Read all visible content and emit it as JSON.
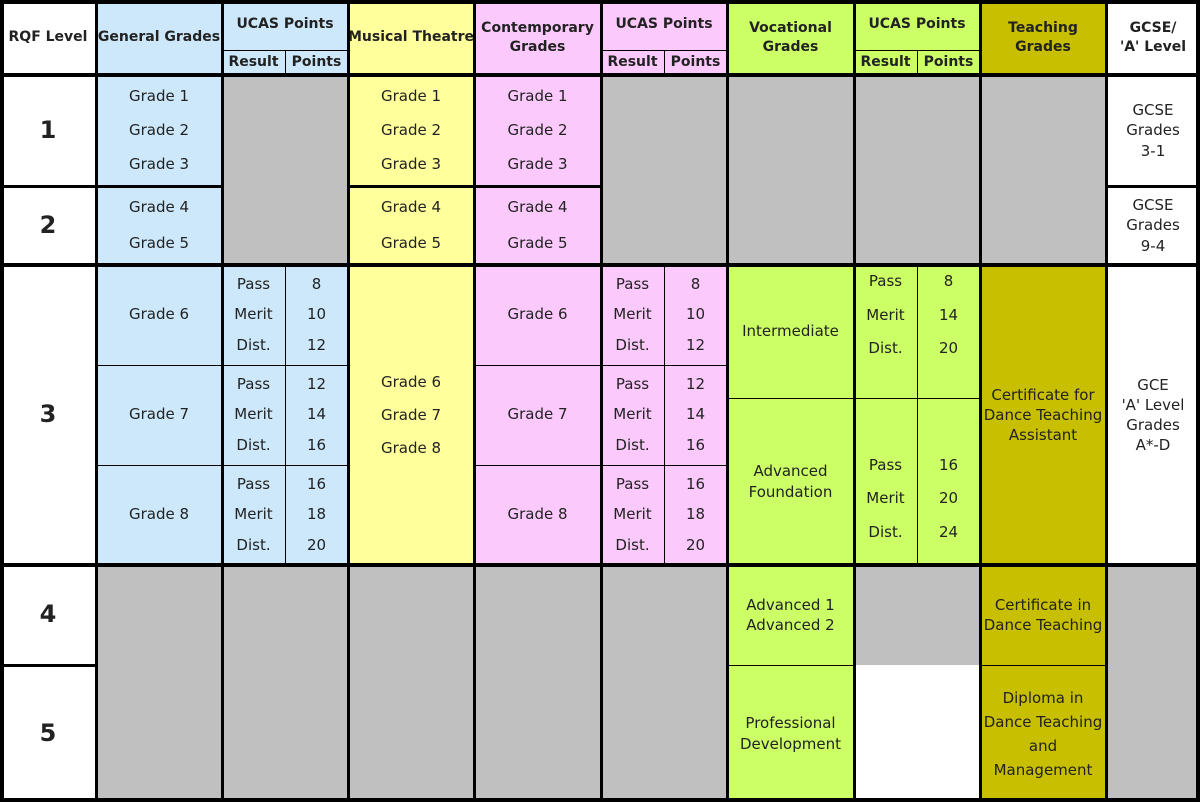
{
  "headers": {
    "rqf": "RQF Level",
    "general": "General Grades",
    "ucas1": "UCAS Points",
    "result1": "Result",
    "points1": "Points",
    "musical": "Musical Theatre",
    "contemporary": [
      "Contemporary",
      "Grades"
    ],
    "ucas2": "UCAS Points",
    "result2": "Result",
    "points2": "Points",
    "vocational": [
      "Vocational",
      "Grades"
    ],
    "ucas3": "UCAS Points",
    "result3": "Result",
    "points3": "Points",
    "teaching": [
      "Teaching",
      "Grades"
    ],
    "gcse": [
      "GCSE/",
      "'A' Level"
    ]
  },
  "levels": [
    "1",
    "2",
    "3",
    "4",
    "5"
  ],
  "general_grades": {
    "l1": [
      "Grade 1",
      "Grade 2",
      "Grade 3"
    ],
    "l2": [
      "Grade 4",
      "Grade 5"
    ],
    "g6": "Grade 6",
    "g7": "Grade 7",
    "g8": "Grade 8"
  },
  "musical_theatre": {
    "l1": [
      "Grade 1",
      "Grade 2",
      "Grade 3"
    ],
    "l2": [
      "Grade 4",
      "Grade 5"
    ],
    "l3": [
      "Grade 6",
      "Grade 7",
      "Grade 8"
    ]
  },
  "contemporary_grades": {
    "l1": [
      "Grade 1",
      "Grade 2",
      "Grade 3"
    ],
    "l2": [
      "Grade 4",
      "Grade 5"
    ],
    "g6": "Grade 6",
    "g7": "Grade 7",
    "g8": "Grade 8"
  },
  "ucas_general": {
    "g6": {
      "results": [
        "Pass",
        "Merit",
        "Dist."
      ],
      "points": [
        "8",
        "10",
        "12"
      ]
    },
    "g7": {
      "results": [
        "Pass",
        "Merit",
        "Dist."
      ],
      "points": [
        "12",
        "14",
        "16"
      ]
    },
    "g8": {
      "results": [
        "Pass",
        "Merit",
        "Dist."
      ],
      "points": [
        "16",
        "18",
        "20"
      ]
    }
  },
  "ucas_contemporary": {
    "g6": {
      "results": [
        "Pass",
        "Merit",
        "Dist."
      ],
      "points": [
        "8",
        "10",
        "12"
      ]
    },
    "g7": {
      "results": [
        "Pass",
        "Merit",
        "Dist."
      ],
      "points": [
        "12",
        "14",
        "16"
      ]
    },
    "g8": {
      "results": [
        "Pass",
        "Merit",
        "Dist."
      ],
      "points": [
        "16",
        "18",
        "20"
      ]
    }
  },
  "vocational": {
    "intermediate": "Intermediate",
    "advanced_foundation": [
      "Advanced",
      "Foundation"
    ],
    "advanced": [
      "Advanced 1",
      "Advanced 2"
    ],
    "professional": [
      "Professional",
      "Development"
    ]
  },
  "ucas_vocational": {
    "intermediate": {
      "results": [
        "Pass",
        "Merit",
        "Dist."
      ],
      "points": [
        "8",
        "14",
        "20"
      ]
    },
    "advanced_foundation": {
      "results": [
        "Pass",
        "Merit",
        "Dist."
      ],
      "points": [
        "16",
        "20",
        "24"
      ]
    }
  },
  "teaching": {
    "l3": [
      "Certificate for",
      "Dance Teaching",
      "Assistant"
    ],
    "l4": [
      "Certificate in",
      "Dance Teaching"
    ],
    "l5": [
      "Diploma in",
      "Dance Teaching",
      "and",
      "Management"
    ]
  },
  "gcse_level": {
    "l1": [
      "GCSE",
      "Grades",
      "3-1"
    ],
    "l2": [
      "GCSE",
      "Grades",
      "9-4"
    ],
    "l3": [
      "GCE",
      "'A' Level",
      "Grades",
      "A*-D"
    ]
  },
  "colors": {
    "blue": "#cce8fa",
    "yellow": "#ffff9c",
    "pink": "#fcc9fc",
    "green": "#ccff66",
    "olive": "#c8bf00",
    "grey": "#c0c0c0",
    "white": "#ffffff"
  }
}
